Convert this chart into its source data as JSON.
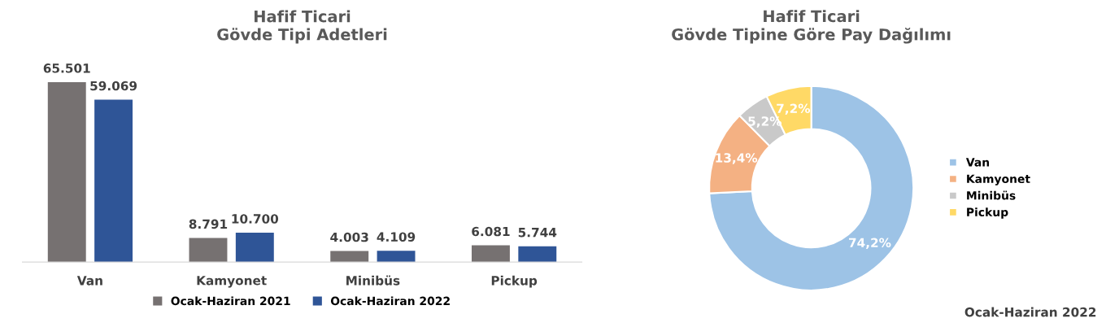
{
  "chart_data": [
    {
      "type": "bar",
      "title": "Hafif Ticari\nGövde Tipi Adetleri",
      "categories": [
        "Van",
        "Kamyonet",
        "Minibüs",
        "Pickup"
      ],
      "series": [
        {
          "name": "Ocak-Haziran 2021",
          "color": "#767171",
          "values": [
            65501,
            8791,
            4003,
            6081
          ],
          "value_labels": [
            "65.501",
            "8.791",
            "4.003",
            "6.081"
          ]
        },
        {
          "name": "Ocak-Haziran 2022",
          "color": "#2f5597",
          "values": [
            59069,
            10700,
            4109,
            5744
          ],
          "value_labels": [
            "59.069",
            "10.700",
            "4.109",
            "5.744"
          ]
        }
      ],
      "legend": "bottom",
      "grid": false
    },
    {
      "type": "donut",
      "title": "Hafif Ticari\nGövde Tipine Göre Pay Dağılımı",
      "categories": [
        "Van",
        "Kamyonet",
        "Minibüs",
        "Pickup"
      ],
      "values": [
        74.2,
        13.4,
        5.2,
        7.2
      ],
      "value_labels": [
        "74,2%",
        "13,4%",
        "5,2%",
        "7,2%"
      ],
      "colors": [
        "#9dc3e6",
        "#f4b183",
        "#c9c9c9",
        "#ffd966"
      ],
      "legend": "right",
      "annotations": [
        "Ocak-Haziran 2022"
      ]
    }
  ]
}
